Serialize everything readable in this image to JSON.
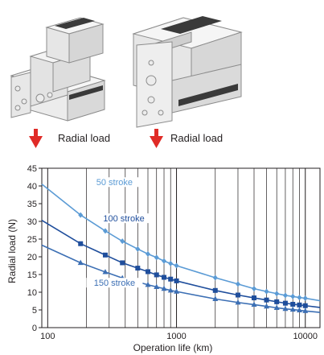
{
  "figure": {
    "left_label": "Radial load",
    "right_label": "Radial load",
    "colors": {
      "arrow": "#e02b27",
      "module_fill": "#e9e9e9",
      "module_stroke": "#8c8c8c",
      "module_dark": "#3a3a3a"
    }
  },
  "chart_data": {
    "type": "line",
    "xlabel": "Operation life (km)",
    "ylabel": "Radial load (N)",
    "x_scale": "log",
    "xlim": [
      90,
      13000
    ],
    "ylim": [
      0,
      45
    ],
    "x_ticks": [
      100,
      1000,
      10000
    ],
    "y_ticks": [
      0,
      5,
      10,
      15,
      20,
      25,
      30,
      35,
      40,
      45
    ],
    "grid": "x-log-minor-and-major, y-none",
    "series": [
      {
        "name": "50 stroke",
        "color": "#5b9bd5",
        "marker": "diamond",
        "x": [
          90,
          180,
          280,
          380,
          500,
          600,
          700,
          800,
          900,
          1000,
          2000,
          3000,
          4000,
          5000,
          6000,
          7000,
          8000,
          9000,
          10000,
          13000
        ],
        "y": [
          40.5,
          31.8,
          27.3,
          24.4,
          22.2,
          20.8,
          19.8,
          18.8,
          18.1,
          17.5,
          14.1,
          12.3,
          11.0,
          10.2,
          9.6,
          9.1,
          8.8,
          8.5,
          8.3,
          7.6
        ]
      },
      {
        "name": "100 stroke",
        "color": "#1f4e9c",
        "marker": "square",
        "x": [
          90,
          180,
          280,
          380,
          500,
          600,
          700,
          800,
          900,
          1000,
          2000,
          3000,
          4000,
          5000,
          6000,
          7000,
          8000,
          9000,
          10000,
          13000
        ],
        "y": [
          30.3,
          23.7,
          20.5,
          18.3,
          16.8,
          15.8,
          14.9,
          14.2,
          13.7,
          13.2,
          10.5,
          9.2,
          8.4,
          7.8,
          7.3,
          6.9,
          6.6,
          6.4,
          6.2,
          5.7
        ]
      },
      {
        "name": "150 stroke",
        "color": "#3c6fb4",
        "marker": "triangle",
        "x": [
          90,
          180,
          280,
          380,
          500,
          600,
          700,
          800,
          900,
          1000,
          2000,
          3000,
          4000,
          5000,
          6000,
          7000,
          8000,
          9000,
          10000,
          13000
        ],
        "y": [
          23.3,
          18.3,
          15.7,
          14.0,
          12.9,
          12.1,
          11.5,
          11.0,
          10.5,
          10.2,
          8.1,
          7.1,
          6.5,
          6.0,
          5.6,
          5.3,
          5.1,
          4.9,
          4.7,
          4.3
        ]
      }
    ],
    "annotations": [
      {
        "text": "50 stroke",
        "series": 0
      },
      {
        "text": "100 stroke",
        "series": 1
      },
      {
        "text": "150 stroke",
        "series": 2
      }
    ]
  }
}
